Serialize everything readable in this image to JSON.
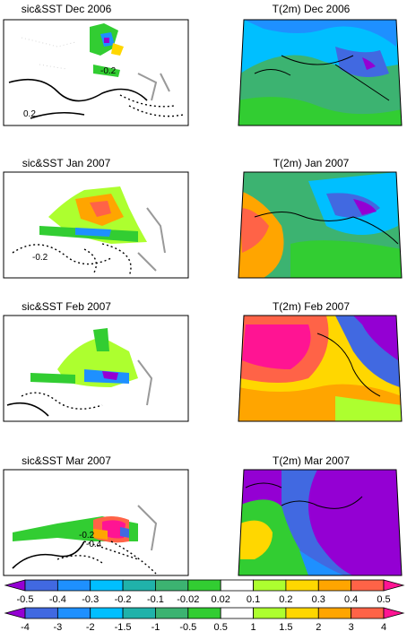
{
  "panels": [
    {
      "row": 0,
      "col": 0,
      "title": "sic&SST Dec 2006",
      "kind": "sic",
      "contour_labels": [
        "-0.2",
        "0.2"
      ]
    },
    {
      "row": 0,
      "col": 1,
      "title": "T(2m) Dec 2006",
      "kind": "t2m",
      "contour_labels": []
    },
    {
      "row": 1,
      "col": 0,
      "title": "sic&SST Jan 2007",
      "kind": "sic",
      "contour_labels": [
        "-0.2"
      ]
    },
    {
      "row": 1,
      "col": 1,
      "title": "T(2m) Jan 2007",
      "kind": "t2m",
      "contour_labels": []
    },
    {
      "row": 2,
      "col": 0,
      "title": "sic&SST Feb 2007",
      "kind": "sic",
      "contour_labels": []
    },
    {
      "row": 2,
      "col": 1,
      "title": "T(2m) Feb 2007",
      "kind": "t2m",
      "contour_labels": []
    },
    {
      "row": 3,
      "col": 0,
      "title": "sic&SST Mar 2007",
      "kind": "sic",
      "contour_labels": [
        "-0.2",
        "-0.4"
      ]
    },
    {
      "row": 3,
      "col": 1,
      "title": "T(2m) Mar 2007",
      "kind": "t2m",
      "contour_labels": []
    }
  ],
  "colorbars": [
    {
      "name": "sic",
      "labels": [
        "-0.5",
        "-0.4",
        "-0.3",
        "-0.2",
        "-0.1",
        "-0.02",
        "0.02",
        "0.1",
        "0.2",
        "0.3",
        "0.4",
        "0.5"
      ]
    },
    {
      "name": "t2m",
      "labels": [
        "-4",
        "-3",
        "-2",
        "-1.5",
        "-1",
        "-0.5",
        "0.5",
        "1",
        "1.5",
        "2",
        "3",
        "4"
      ]
    }
  ],
  "palette": [
    "#9400d3",
    "#4169e1",
    "#1e90ff",
    "#00bfff",
    "#20b2aa",
    "#3cb371",
    "#32cd32",
    "#ffffff",
    "#adff2f",
    "#ffd700",
    "#ffa500",
    "#ff6347",
    "#ff1493"
  ],
  "chart_data": [
    {
      "type": "heatmap",
      "title": "sic&SST Dec 2006"
    },
    {
      "type": "heatmap",
      "title": "T(2m) Dec 2006"
    },
    {
      "type": "heatmap",
      "title": "sic&SST Jan 2007"
    },
    {
      "type": "heatmap",
      "title": "T(2m) Jan 2007"
    },
    {
      "type": "heatmap",
      "title": "sic&SST Feb 2007"
    },
    {
      "type": "heatmap",
      "title": "T(2m) Feb 2007"
    },
    {
      "type": "heatmap",
      "title": "sic&SST Mar 2007"
    },
    {
      "type": "heatmap",
      "title": "T(2m) Mar 2007"
    }
  ]
}
